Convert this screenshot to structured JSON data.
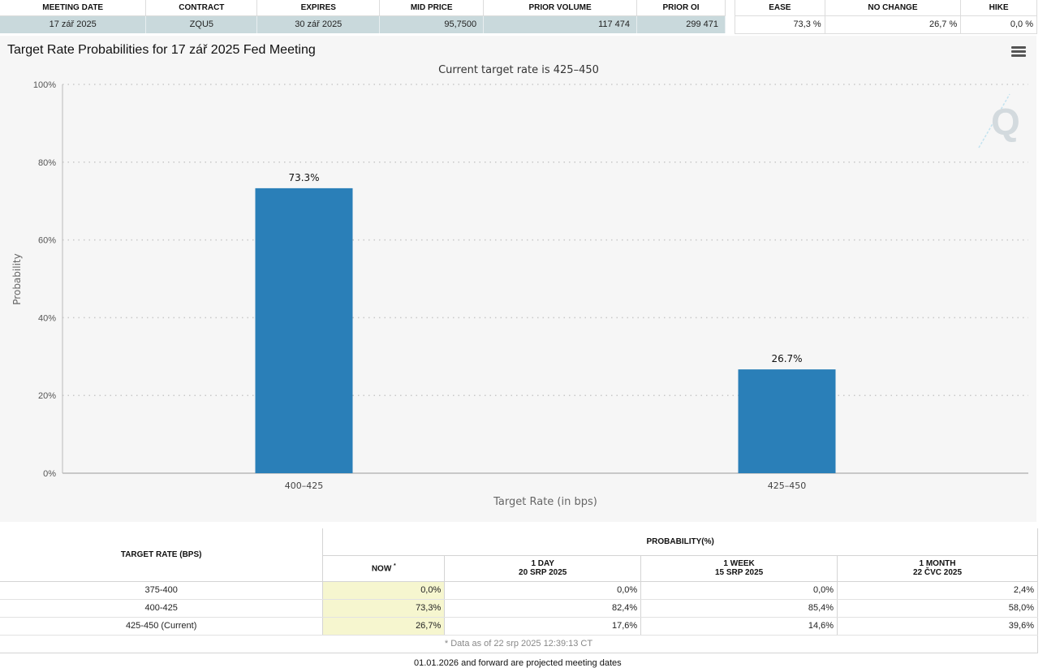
{
  "meeting_table": {
    "headers": [
      "MEETING DATE",
      "CONTRACT",
      "EXPIRES",
      "MID PRICE",
      "PRIOR VOLUME",
      "PRIOR OI"
    ],
    "row": {
      "meeting_date": "17 zář 2025",
      "contract": "ZQU5",
      "expires": "30 zář 2025",
      "mid_price": "95,7500",
      "prior_volume": "117 474",
      "prior_oi": "299 471"
    }
  },
  "probability_summary": {
    "headers": [
      "EASE",
      "NO CHANGE",
      "HIKE"
    ],
    "values": [
      "73,3 %",
      "26,7 %",
      "0,0 %"
    ]
  },
  "chart": {
    "title": "Target Rate Probabilities for 17 zář 2025 Fed Meeting",
    "menu_icon": "hamburger-menu-icon",
    "watermark_icon": "quikstrike-q-logo"
  },
  "chart_data": {
    "type": "bar",
    "title": "Target Rate Probabilities for 17 zář 2025 Fed Meeting",
    "subtitle": "Current target rate is 425–450",
    "xlabel": "Target Rate (in bps)",
    "ylabel": "Probability",
    "categories": [
      "400–425",
      "425–450"
    ],
    "values": [
      73.3,
      26.7
    ],
    "data_labels": [
      "73.3%",
      "26.7%"
    ],
    "ylim": [
      0,
      100
    ],
    "yticks": [
      0,
      20,
      40,
      60,
      80,
      100
    ],
    "ytick_labels": [
      "0%",
      "20%",
      "40%",
      "60%",
      "80%",
      "100%"
    ],
    "bar_color": "#2a7fb8",
    "grid": "horizontal dotted"
  },
  "detail_table": {
    "target_rate_header": "TARGET RATE (BPS)",
    "probability_header": "PROBABILITY(%)",
    "now_header": "NOW",
    "now_marker": "*",
    "day_header": "1 DAY",
    "day_date": "20 SRP 2025",
    "week_header": "1 WEEK",
    "week_date": "15 SRP 2025",
    "month_header": "1 MONTH",
    "month_date": "22 ČVC 2025",
    "rows": [
      {
        "rate": "375-400",
        "now": "0,0%",
        "day": "0,0%",
        "week": "0,0%",
        "month": "2,4%"
      },
      {
        "rate": "400-425",
        "now": "73,3%",
        "day": "82,4%",
        "week": "85,4%",
        "month": "58,0%"
      },
      {
        "rate": "425-450 (Current)",
        "now": "26,7%",
        "day": "17,6%",
        "week": "14,6%",
        "month": "39,6%"
      }
    ],
    "footnote": "* Data as of 22 srp 2025 12:39:13 CT"
  },
  "projection_note": "01.01.2026 and forward are projected meeting dates",
  "colors": {
    "highlight_row": "#c9d9dc",
    "now_cell": "#f6f6cf",
    "bar": "#2a7fb8",
    "chart_background": "#f6f6f6"
  }
}
